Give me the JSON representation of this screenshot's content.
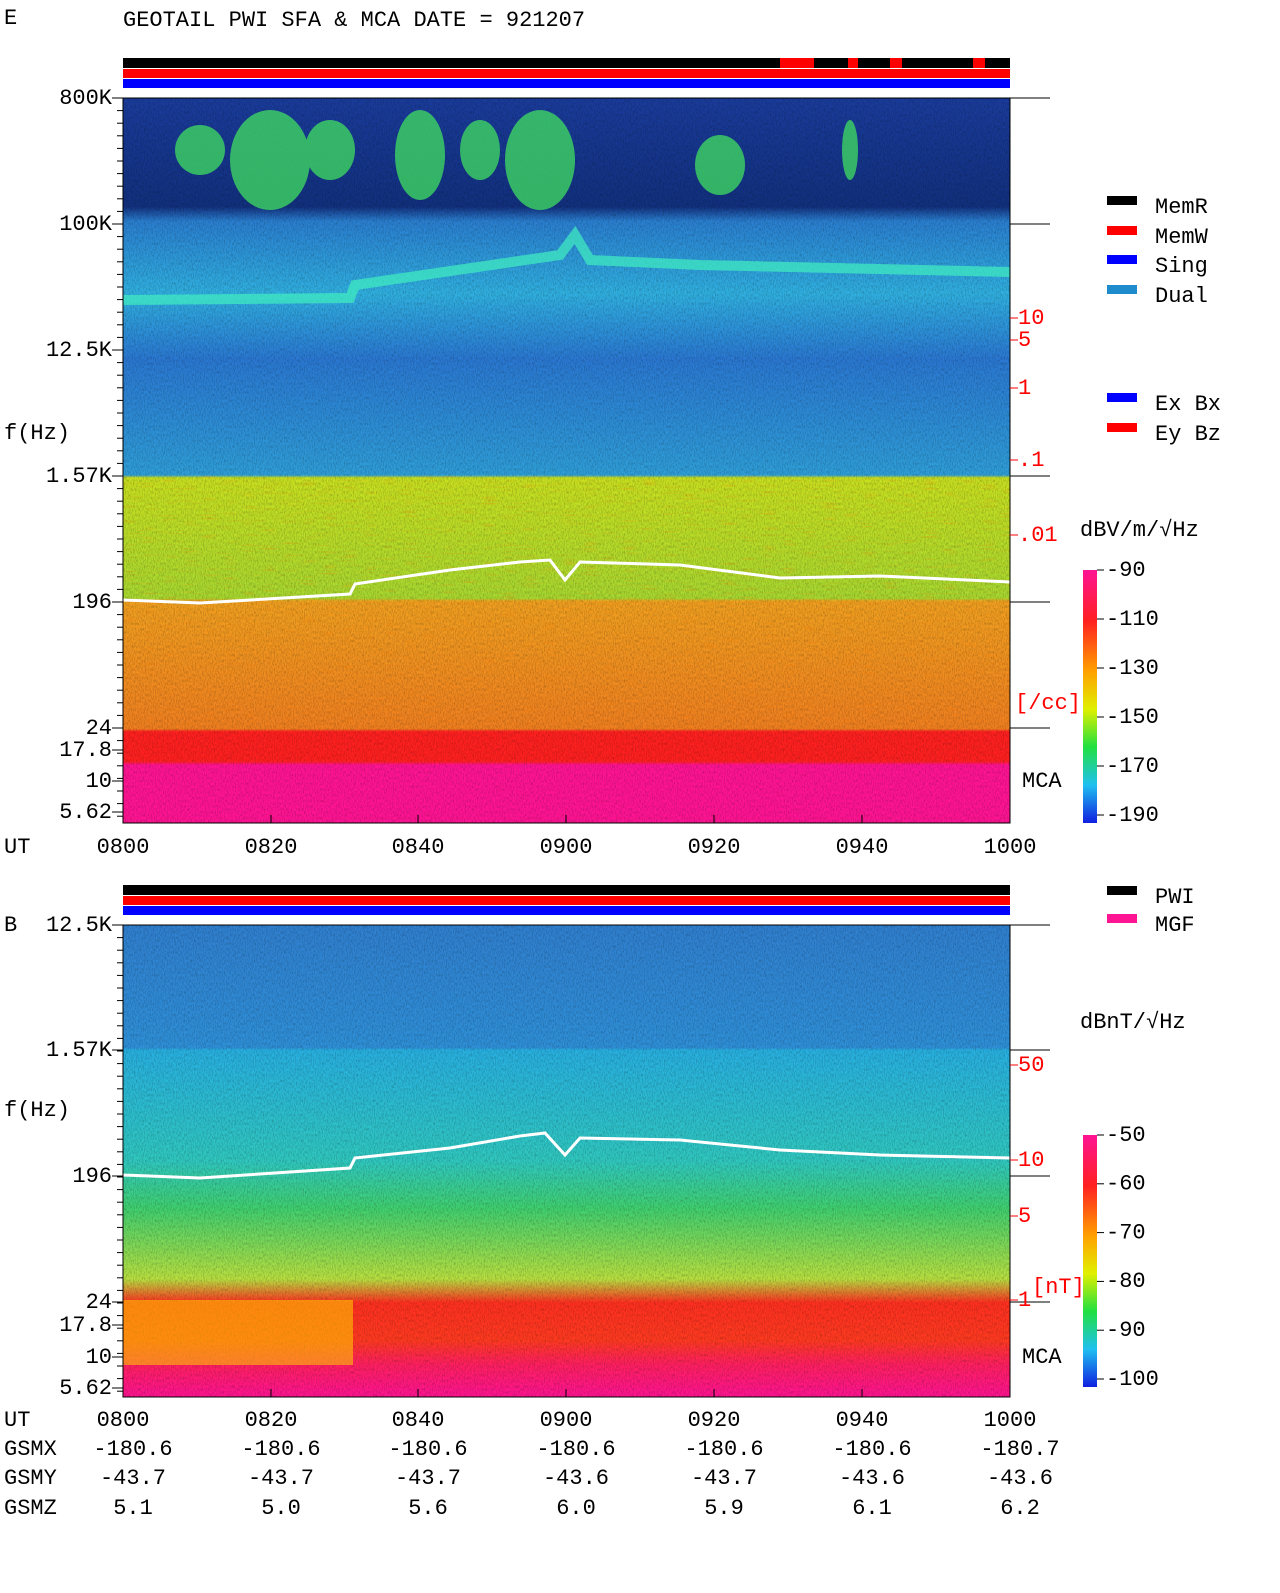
{
  "header": {
    "title": "GEOTAIL  PWI SFA & MCA   DATE = 921207"
  },
  "panels": [
    {
      "label": "E",
      "y_label": "f(Hz)",
      "freq_ticks": [
        "800K",
        "100K",
        "12.5K",
        "1.57K",
        "196",
        "24",
        "17.8",
        "10",
        "5.62"
      ],
      "ut_label": "UT",
      "ut_ticks": [
        "0800",
        "0820",
        "0840",
        "0900",
        "0920",
        "0940",
        "1000"
      ],
      "right_ticks": [
        "10",
        "5",
        "1",
        ".1",
        ".01"
      ],
      "right_unit": "[/cc]",
      "mca": "MCA",
      "legend": [
        {
          "label": "MemR",
          "color": "#000000"
        },
        {
          "label": "MemW",
          "color": "#ff0000"
        },
        {
          "label": "Sing",
          "color": "#0000ff"
        },
        {
          "label": "Dual",
          "color": "#1e8ccc"
        },
        {
          "label": "Ex Bx",
          "color": "#0000ff"
        },
        {
          "label": "Ey Bz",
          "color": "#ff0000"
        }
      ],
      "colorbar": {
        "unit": "dBV/m/√Hz",
        "ticks": [
          "-90",
          "-110",
          "-130",
          "-150",
          "-170",
          "-190"
        ]
      }
    },
    {
      "label": "B",
      "y_label": "f(Hz)",
      "freq_ticks": [
        "12.5K",
        "1.57K",
        "196",
        "24",
        "17.8",
        "10",
        "5.62"
      ],
      "ut_label": "UT",
      "ut_ticks": [
        "0800",
        "0820",
        "0840",
        "0900",
        "0920",
        "0940",
        "1000"
      ],
      "right_ticks": [
        "50",
        "10",
        "5",
        "1"
      ],
      "right_unit": "[nT]",
      "mca": "MCA",
      "legend": [
        {
          "label": "PWI",
          "color": "#000000"
        },
        {
          "label": "MGF",
          "color": "#ff1493"
        }
      ],
      "colorbar": {
        "unit": "dBnT/√Hz",
        "ticks": [
          "-50",
          "-60",
          "-70",
          "-80",
          "-90",
          "-100"
        ]
      }
    }
  ],
  "ephemeris": {
    "rows": [
      {
        "label": "GSMX",
        "values": [
          "-180.6",
          "-180.6",
          "-180.6",
          "-180.6",
          "-180.6",
          "-180.6",
          "-180.7"
        ]
      },
      {
        "label": "GSMY",
        "values": [
          "-43.7",
          "-43.7",
          "-43.7",
          "-43.6",
          "-43.7",
          "-43.6",
          "-43.6"
        ]
      },
      {
        "label": "GSMZ",
        "values": [
          "5.1",
          "5.0",
          "5.6",
          "6.0",
          "5.9",
          "6.1",
          "6.2"
        ]
      }
    ]
  }
}
